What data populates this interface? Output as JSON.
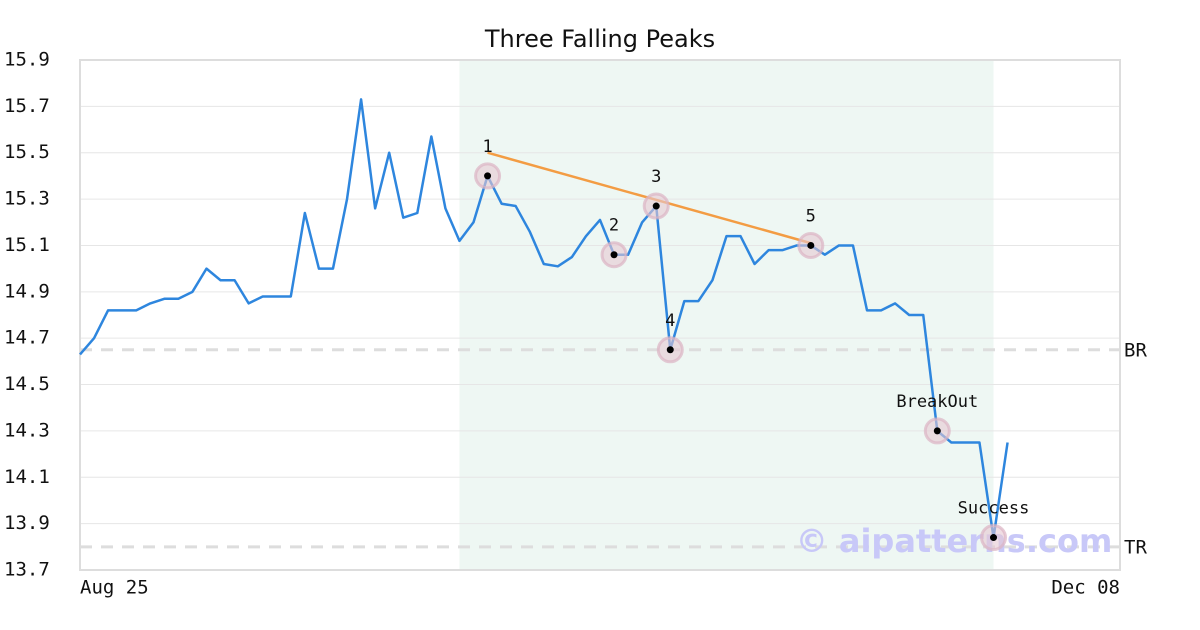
{
  "chart_data": {
    "type": "line",
    "title": "Three Falling Peaks",
    "categories": [
      "Aug 25",
      null,
      null,
      null,
      null,
      null,
      null,
      null,
      null,
      null,
      null,
      null,
      null,
      null,
      null,
      null,
      null,
      null,
      null,
      null,
      null,
      null,
      null,
      null,
      null,
      null,
      null,
      null,
      null,
      null,
      null,
      null,
      null,
      null,
      null,
      null,
      null,
      null,
      null,
      null,
      null,
      null,
      null,
      null,
      null,
      null,
      null,
      null,
      null,
      null,
      null,
      null,
      null,
      null,
      null,
      null,
      null,
      null,
      null,
      null,
      null,
      null,
      null,
      null,
      null,
      null,
      null,
      null,
      null,
      null,
      null,
      null,
      null,
      null,
      "Dec 08"
    ],
    "series": [
      {
        "color": "#2e86de",
        "values": [
          14.63,
          14.7,
          14.82,
          14.82,
          14.82,
          14.85,
          14.87,
          14.87,
          14.9,
          15.0,
          14.95,
          14.95,
          14.85,
          14.88,
          14.88,
          14.88,
          15.24,
          15.0,
          15.0,
          15.3,
          15.73,
          15.26,
          15.5,
          15.22,
          15.24,
          15.57,
          15.26,
          15.12,
          15.2,
          15.4,
          15.28,
          15.27,
          15.16,
          15.02,
          15.01,
          15.05,
          15.14,
          15.21,
          15.06,
          15.06,
          15.2,
          15.27,
          14.65,
          14.86,
          14.86,
          14.95,
          15.14,
          15.14,
          15.02,
          15.08,
          15.08,
          15.1,
          15.1,
          15.06,
          15.1,
          15.1,
          14.82,
          14.82,
          14.85,
          14.8,
          14.8,
          14.3,
          14.25,
          14.25,
          14.25,
          13.84,
          14.25,
          null,
          null,
          null,
          null,
          null,
          null,
          null,
          null
        ]
      }
    ],
    "ylim": [
      13.7,
      15.9
    ],
    "yticks": [
      13.7,
      13.9,
      14.1,
      14.3,
      14.5,
      14.7,
      14.9,
      15.1,
      15.3,
      15.5,
      15.7,
      15.9
    ],
    "grid": true,
    "highlight": [
      27,
      65
    ],
    "highlight_color": "#eef7f3",
    "levels": [
      {
        "label": "BR",
        "value": 14.65
      },
      {
        "label": "TR",
        "value": 13.8
      }
    ],
    "trendline": {
      "color": "#f39c43",
      "x": [
        29,
        52
      ],
      "values": [
        15.5,
        15.11
      ]
    },
    "annotations": [
      {
        "label": "1",
        "index": 29,
        "value": 15.4
      },
      {
        "label": "2",
        "index": 38,
        "value": 15.06
      },
      {
        "label": "3",
        "index": 41,
        "value": 15.27
      },
      {
        "label": "4",
        "index": 42,
        "value": 14.65
      },
      {
        "label": "5",
        "index": 52,
        "value": 15.1
      },
      {
        "label": "BreakOut",
        "index": 61,
        "value": 14.3
      },
      {
        "label": "Success",
        "index": 65,
        "value": 13.84
      }
    ],
    "watermark": "© aipatterns.com"
  }
}
